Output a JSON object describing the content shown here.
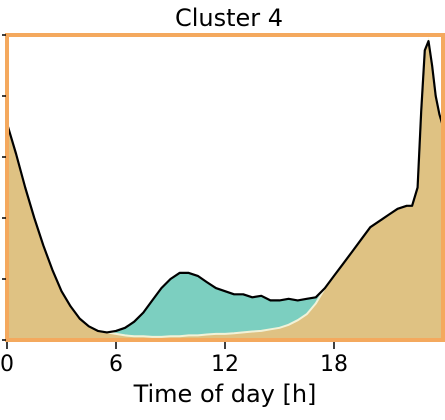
{
  "chart_data": {
    "type": "area",
    "title": "Cluster 4",
    "xlabel": "Time of day [h]",
    "ylabel": "",
    "xlim": [
      0,
      24
    ],
    "ylim": [
      0,
      1
    ],
    "xticks": [
      0,
      6,
      12,
      18
    ],
    "x_tick_labels": [
      "0",
      "6",
      "12",
      "18"
    ],
    "yticks": [
      0.0,
      0.2,
      0.4,
      0.6,
      0.8,
      1.0
    ],
    "grid": false,
    "legend": "none",
    "colors": {
      "frame": "#f4a95e",
      "base_fill": "#dfc283",
      "highlight_fill": "#7ccfc0",
      "outline": "#000000",
      "base_line": "#f2f2d8"
    },
    "series": [
      {
        "role": "total",
        "x": [
          0,
          0.5,
          1,
          1.5,
          2,
          2.5,
          3,
          3.5,
          4,
          4.5,
          5,
          5.5,
          6,
          6.5,
          7,
          7.5,
          8,
          8.5,
          9,
          9.5,
          10,
          10.5,
          11,
          11.5,
          12,
          12.5,
          13,
          13.5,
          14,
          14.5,
          15,
          15.5,
          16,
          16.5,
          17,
          17.5,
          18,
          18.5,
          19,
          19.5,
          20,
          20.5,
          21,
          21.5,
          22,
          22.3,
          22.6,
          22.8,
          23,
          23.2,
          23.4,
          23.6,
          23.8,
          24
        ],
        "y": [
          0.71,
          0.61,
          0.5,
          0.4,
          0.31,
          0.23,
          0.16,
          0.11,
          0.07,
          0.045,
          0.03,
          0.025,
          0.03,
          0.04,
          0.06,
          0.09,
          0.13,
          0.17,
          0.2,
          0.22,
          0.22,
          0.21,
          0.19,
          0.17,
          0.16,
          0.15,
          0.15,
          0.14,
          0.145,
          0.13,
          0.13,
          0.135,
          0.13,
          0.135,
          0.14,
          0.17,
          0.21,
          0.25,
          0.29,
          0.33,
          0.37,
          0.39,
          0.41,
          0.43,
          0.44,
          0.44,
          0.5,
          0.75,
          0.95,
          0.98,
          0.9,
          0.8,
          0.74,
          0.7
        ]
      },
      {
        "role": "base",
        "x": [
          0,
          0.5,
          1,
          1.5,
          2,
          2.5,
          3,
          3.5,
          4,
          4.5,
          5,
          5.5,
          6,
          6.5,
          7,
          7.5,
          8,
          8.5,
          9,
          9.5,
          10,
          10.5,
          11,
          11.5,
          12,
          12.5,
          13,
          13.5,
          14,
          14.5,
          15,
          15.5,
          16,
          16.5,
          17,
          17.5,
          18,
          18.5,
          19,
          19.5,
          20,
          20.5,
          21,
          21.5,
          22,
          22.3,
          22.6,
          22.8,
          23,
          23.2,
          23.4,
          23.6,
          23.8,
          24
        ],
        "y": [
          0.71,
          0.61,
          0.5,
          0.4,
          0.31,
          0.23,
          0.16,
          0.11,
          0.07,
          0.045,
          0.03,
          0.025,
          0.02,
          0.015,
          0.012,
          0.012,
          0.01,
          0.01,
          0.012,
          0.012,
          0.015,
          0.015,
          0.018,
          0.02,
          0.02,
          0.022,
          0.025,
          0.028,
          0.03,
          0.035,
          0.04,
          0.05,
          0.065,
          0.085,
          0.12,
          0.17,
          0.21,
          0.25,
          0.29,
          0.33,
          0.37,
          0.39,
          0.41,
          0.43,
          0.44,
          0.44,
          0.5,
          0.75,
          0.95,
          0.98,
          0.9,
          0.8,
          0.74,
          0.7
        ]
      }
    ]
  }
}
